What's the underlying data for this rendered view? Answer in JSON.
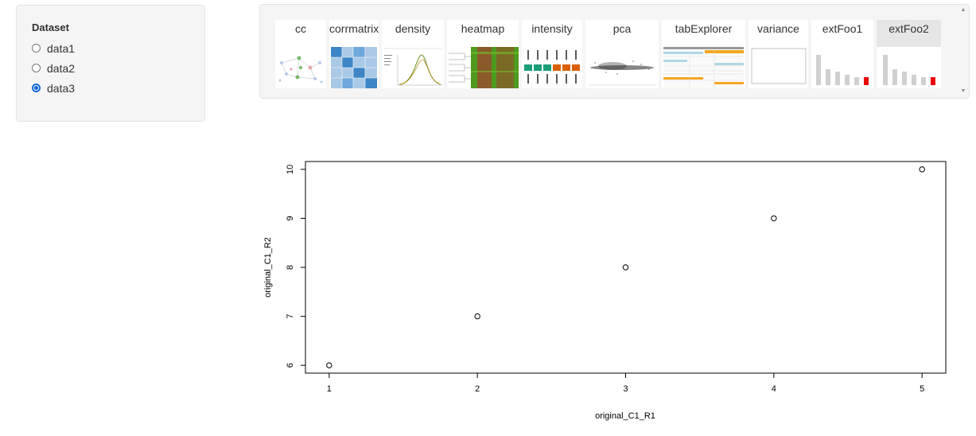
{
  "sidebar": {
    "title": "Dataset",
    "options": [
      {
        "label": "data1",
        "checked": false
      },
      {
        "label": "data2",
        "checked": false
      },
      {
        "label": "data3",
        "checked": true
      }
    ]
  },
  "thumbnails": [
    {
      "label": "cc",
      "selected": false,
      "icon": "network-graph-thumbnail"
    },
    {
      "label": "corrmatrix",
      "selected": false,
      "icon": "correlation-matrix-thumbnail"
    },
    {
      "label": "density",
      "selected": false,
      "icon": "density-plot-thumbnail"
    },
    {
      "label": "heatmap",
      "selected": false,
      "icon": "heatmap-thumbnail"
    },
    {
      "label": "intensity",
      "selected": false,
      "icon": "boxplot-thumbnail"
    },
    {
      "label": "pca",
      "selected": false,
      "icon": "scatter-thumbnail"
    },
    {
      "label": "tabExplorer",
      "selected": false,
      "icon": "table-thumbnail"
    },
    {
      "label": "variance",
      "selected": false,
      "icon": "blank-plot-thumbnail"
    },
    {
      "label": "extFoo1",
      "selected": false,
      "icon": "bar-chart-thumbnail"
    },
    {
      "label": "extFoo2",
      "selected": true,
      "icon": "bar-chart-thumbnail"
    }
  ],
  "colors": {
    "radio_checked": "#0b62d6",
    "panel_bg": "#f5f5f5",
    "selected_tab_bg": "#e6e6e6",
    "highlight_bar": "#e8000b",
    "heatmap_green": "#4d9a1f",
    "heatmap_brown": "#8a5a2b",
    "boxplot_teal": "#1b9e77",
    "boxplot_orange": "#d95f02",
    "table_orange": "#f5a623",
    "table_blue": "#add8e6"
  },
  "chart_data": {
    "type": "scatter",
    "x": [
      1,
      2,
      3,
      4,
      5
    ],
    "y": [
      6,
      7,
      8,
      9,
      10
    ],
    "xlabel": "original_C1_R1",
    "ylabel": "original_C1_R2",
    "xticks": [
      "1",
      "2",
      "3",
      "4",
      "5"
    ],
    "yticks": [
      "6",
      "7",
      "8",
      "9",
      "10"
    ],
    "xlim": [
      0.84,
      5.16
    ],
    "ylim": [
      5.84,
      10.16
    ],
    "marker": "open-circle",
    "grid": false
  }
}
